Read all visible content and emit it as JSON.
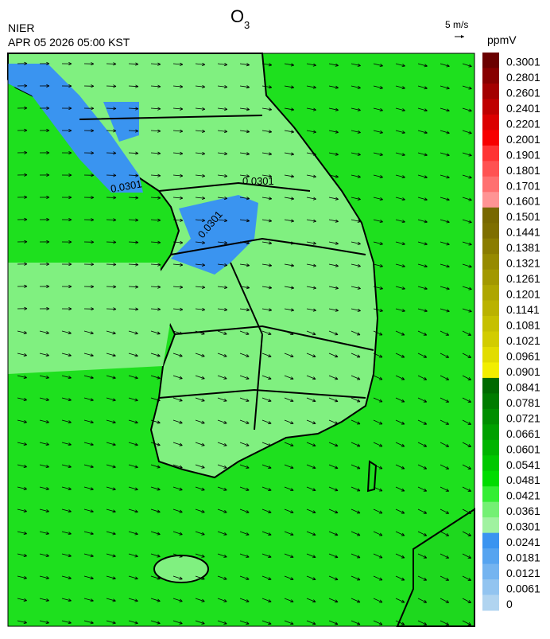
{
  "header": {
    "title": {
      "main": "O",
      "sub": "3"
    },
    "agency": "NIER",
    "datetime": "APR 05 2026 05:00 KST",
    "wind_scale": "5 m/s"
  },
  "legend": {
    "unit": "ppmV",
    "levels": [
      "0.3001",
      "0.2801",
      "0.2601",
      "0.2401",
      "0.2201",
      "0.2001",
      "0.1901",
      "0.1801",
      "0.1701",
      "0.1601",
      "0.1501",
      "0.1441",
      "0.1381",
      "0.1321",
      "0.1261",
      "0.1201",
      "0.1141",
      "0.1081",
      "0.1021",
      "0.0961",
      "0.0901",
      "0.0841",
      "0.0781",
      "0.0721",
      "0.0661",
      "0.0601",
      "0.0541",
      "0.0481",
      "0.0421",
      "0.0361",
      "0.0301",
      "0.0241",
      "0.0181",
      "0.0121",
      "0.0061",
      "0"
    ],
    "colors": [
      "#6b0000",
      "#870000",
      "#a30000",
      "#bf0000",
      "#db0000",
      "#f70000",
      "#ff3434",
      "#ff5252",
      "#ff7070",
      "#ff9494",
      "#786800",
      "#7e6e00",
      "#8a7c00",
      "#968a00",
      "#a29800",
      "#aea600",
      "#bab200",
      "#c6c000",
      "#d2cc00",
      "#e2dc00",
      "#f2ee00",
      "#006a00",
      "#007c00",
      "#008e00",
      "#00a000",
      "#00b400",
      "#00c800",
      "#00dc00",
      "#34ee34",
      "#74f074",
      "#a0f2a0",
      "#3a94f0",
      "#56a4f0",
      "#74b4f0",
      "#92c4f0",
      "#b0d4f0"
    ]
  },
  "map": {
    "contour_labels": [
      "0.0301",
      "0.0301",
      "0.0301"
    ]
  }
}
